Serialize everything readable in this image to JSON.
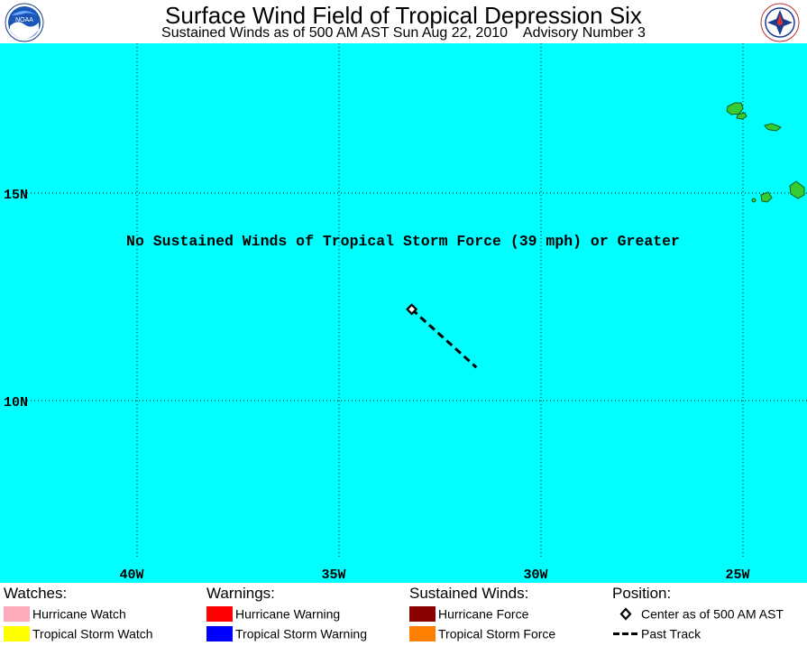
{
  "header": {
    "title": "Surface Wind Field of Tropical Depression Six",
    "subtitle": "Sustained Winds as of 500 AM AST Sun Aug 22, 2010    Advisory Number 3",
    "left_logo_text": "NOAA",
    "right_logo_text": "NATIONAL WEATHER SERVICE"
  },
  "map": {
    "ocean_color": "#00ffff",
    "land_color": "#33cc33",
    "message": "No Sustained Winds of Tropical Storm Force (39 mph) or Greater",
    "lat_labels": [
      {
        "label": "15N",
        "lat": 15
      },
      {
        "label": "10N",
        "lat": 10
      }
    ],
    "lon_labels": [
      {
        "label": "40W",
        "lon": -40
      },
      {
        "label": "35W",
        "lon": -35
      },
      {
        "label": "30W",
        "lon": -30
      },
      {
        "label": "25W",
        "lon": -25
      }
    ],
    "storm_center": {
      "lat": 12.2,
      "lon": -33.2
    },
    "past_track": [
      {
        "lat": 12.2,
        "lon": -33.2
      },
      {
        "lat": 11.5,
        "lon": -32.4
      },
      {
        "lat": 10.8,
        "lon": -31.6
      }
    ]
  },
  "legend": {
    "watches": {
      "heading": "Watches:",
      "items": [
        {
          "label": "Hurricane Watch",
          "color": "#ffaabb"
        },
        {
          "label": "Tropical Storm Watch",
          "color": "#ffff00"
        }
      ]
    },
    "warnings": {
      "heading": "Warnings:",
      "items": [
        {
          "label": "Hurricane Warning",
          "color": "#ff0000"
        },
        {
          "label": "Tropical Storm Warning",
          "color": "#0000ff"
        }
      ]
    },
    "winds": {
      "heading": "Sustained Winds:",
      "items": [
        {
          "label": "Hurricane Force",
          "color": "#8b0000"
        },
        {
          "label": "Tropical Storm Force",
          "color": "#ff8000"
        }
      ]
    },
    "position": {
      "heading": "Position:",
      "items": [
        {
          "label": "Center as of 500 AM AST",
          "icon": "diamond-icon"
        },
        {
          "label": "Past Track",
          "icon": "dashed-line-icon"
        }
      ]
    }
  }
}
